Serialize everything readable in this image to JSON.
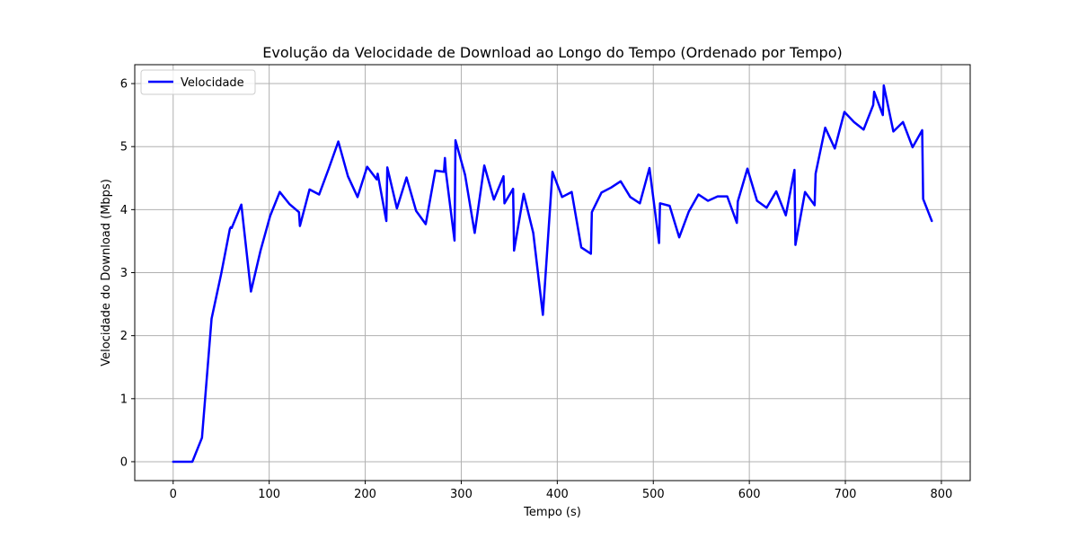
{
  "chart_data": {
    "type": "line",
    "title": "Evolução da Velocidade de Download ao Longo do Tempo (Ordenado por Tempo)",
    "xlabel": "Tempo (s)",
    "ylabel": "Velocidade do Download (Mbps)",
    "xlim": [
      -40,
      830
    ],
    "ylim": [
      -0.3,
      6.3
    ],
    "xticks": [
      0,
      100,
      200,
      300,
      400,
      500,
      600,
      700,
      800
    ],
    "yticks": [
      0,
      1,
      2,
      3,
      4,
      5,
      6
    ],
    "grid": true,
    "legend_position": "top-left",
    "series": [
      {
        "name": "Velocidade",
        "color": "#0000ff",
        "x": [
          0,
          10,
          20,
          30,
          40,
          50,
          59,
          60,
          61,
          71,
          81,
          91,
          101,
          111,
          121,
          131,
          132,
          142,
          152,
          162,
          172,
          182,
          192,
          202,
          212,
          213,
          222,
          223,
          233,
          243,
          253,
          263,
          273,
          282,
          283,
          284,
          293,
          294,
          304,
          314,
          324,
          334,
          344,
          345,
          354,
          355,
          365,
          375,
          385,
          395,
          405,
          415,
          425,
          435,
          436,
          446,
          456,
          466,
          476,
          486,
          496,
          506,
          507,
          517,
          527,
          537,
          547,
          557,
          567,
          577,
          587,
          588,
          598,
          608,
          618,
          628,
          638,
          647,
          648,
          658,
          668,
          669,
          679,
          689,
          699,
          709,
          719,
          729,
          730,
          739,
          740,
          750,
          760,
          770,
          780,
          781,
          790
        ],
        "y": [
          0,
          0,
          0,
          0.38,
          2.27,
          2.98,
          3.69,
          3.72,
          3.71,
          4.08,
          2.7,
          3.35,
          3.9,
          4.28,
          4.09,
          3.96,
          3.74,
          4.32,
          4.24,
          4.65,
          5.08,
          4.53,
          4.2,
          4.68,
          4.48,
          4.57,
          3.82,
          4.67,
          4.02,
          4.51,
          3.98,
          3.77,
          4.62,
          4.6,
          4.82,
          4.6,
          3.51,
          5.1,
          4.55,
          3.63,
          4.7,
          4.16,
          4.53,
          4.1,
          4.33,
          3.35,
          4.25,
          3.63,
          2.33,
          4.6,
          4.2,
          4.28,
          3.4,
          3.3,
          3.96,
          4.27,
          4.35,
          4.45,
          4.2,
          4.1,
          4.66,
          3.47,
          4.1,
          4.06,
          3.56,
          3.97,
          4.24,
          4.14,
          4.21,
          4.21,
          3.79,
          4.13,
          4.65,
          4.14,
          4.03,
          4.29,
          3.91,
          4.63,
          3.44,
          4.28,
          4.07,
          4.57,
          5.3,
          4.97,
          5.55,
          5.39,
          5.27,
          5.66,
          5.87,
          5.5,
          5.97,
          5.24,
          5.39,
          4.99,
          5.26,
          4.17,
          3.82
        ]
      }
    ]
  }
}
